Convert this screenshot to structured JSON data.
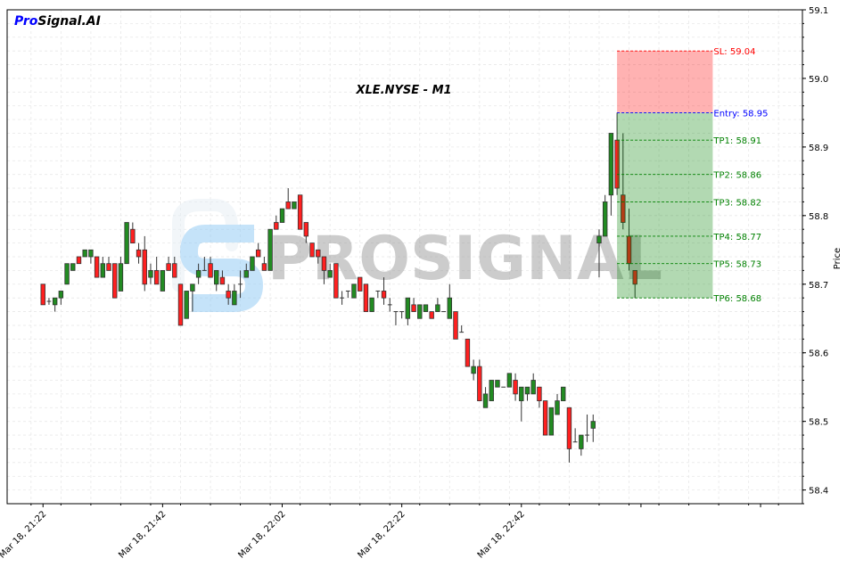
{
  "brand": {
    "part1": "Pro",
    "part2": "Signal.AI",
    "part1_color": "#0000ff",
    "part2_color": "#000000"
  },
  "watermark": {
    "text": "PROSIGNAL",
    "logo_icon": "prosignal-s-logo"
  },
  "chart_data": {
    "type": "candlestick",
    "title": "XLE.NYSE - M1",
    "xlabel": "",
    "ylabel": "Price",
    "date": "Mar 18",
    "xlim": [
      "21:16",
      "23:29"
    ],
    "ylim": [
      58.38,
      59.1
    ],
    "yticks": [
      "58.4",
      "58.5",
      "58.6",
      "58.7",
      "58.8",
      "58.9",
      "59.0",
      "59.1"
    ],
    "xticks": [
      {
        "time": "21:22",
        "label": "Mar 18, 21:22"
      },
      {
        "time": "21:42",
        "label": "Mar 18, 21:42"
      },
      {
        "time": "22:02",
        "label": "Mar 18, 22:02"
      },
      {
        "time": "22:22",
        "label": "Mar 18, 22:22"
      },
      {
        "time": "22:42",
        "label": "Mar 18, 22:42"
      },
      {
        "time": "23:02",
        "label": ""
      },
      {
        "time": "23:22",
        "label": ""
      }
    ],
    "grid": true,
    "colors": {
      "up": "#228b22",
      "down": "#ff2020",
      "edge": "#333333",
      "sl_zone": "#ff0000",
      "tp_zone": "#008000",
      "entry": "#0000ff"
    },
    "candles_fields": [
      "time",
      "open",
      "high",
      "low",
      "close"
    ],
    "candles": [
      [
        "21:22",
        58.7,
        58.7,
        58.67,
        58.67
      ],
      [
        "21:23",
        58.675,
        58.68,
        58.67,
        58.675
      ],
      [
        "21:24",
        58.67,
        58.68,
        58.66,
        58.68
      ],
      [
        "21:25",
        58.68,
        58.69,
        58.67,
        58.69
      ],
      [
        "21:26",
        58.7,
        58.73,
        58.7,
        58.73
      ],
      [
        "21:27",
        58.72,
        58.73,
        58.72,
        58.73
      ],
      [
        "21:28",
        58.74,
        58.74,
        58.73,
        58.73
      ],
      [
        "21:29",
        58.74,
        58.75,
        58.74,
        58.75
      ],
      [
        "21:30",
        58.74,
        58.75,
        58.73,
        58.75
      ],
      [
        "21:31",
        58.74,
        58.74,
        58.71,
        58.71
      ],
      [
        "21:32",
        58.71,
        58.74,
        58.71,
        58.73
      ],
      [
        "21:33",
        58.73,
        58.74,
        58.72,
        58.72
      ],
      [
        "21:34",
        58.73,
        58.73,
        58.68,
        58.68
      ],
      [
        "21:35",
        58.69,
        58.74,
        58.69,
        58.73
      ],
      [
        "21:36",
        58.73,
        58.79,
        58.73,
        58.79
      ],
      [
        "21:37",
        58.78,
        58.79,
        58.76,
        58.76
      ],
      [
        "21:38",
        58.75,
        58.76,
        58.73,
        58.74
      ],
      [
        "21:39",
        58.75,
        58.77,
        58.69,
        58.7
      ],
      [
        "21:40",
        58.71,
        58.73,
        58.7,
        58.72
      ],
      [
        "21:41",
        58.72,
        58.74,
        58.7,
        58.7
      ],
      [
        "21:42",
        58.69,
        58.72,
        58.69,
        58.72
      ],
      [
        "21:43",
        58.73,
        58.74,
        58.72,
        58.72
      ],
      [
        "21:44",
        58.73,
        58.74,
        58.71,
        58.71
      ],
      [
        "21:45",
        58.7,
        58.7,
        58.64,
        58.64
      ],
      [
        "21:46",
        58.65,
        58.69,
        58.65,
        58.69
      ],
      [
        "21:47",
        58.69,
        58.7,
        58.66,
        58.7
      ],
      [
        "21:48",
        58.71,
        58.73,
        58.7,
        58.72
      ],
      [
        "21:49",
        58.72,
        58.74,
        58.72,
        58.72
      ],
      [
        "21:50",
        58.73,
        58.74,
        58.71,
        58.71
      ],
      [
        "21:51",
        58.7,
        58.72,
        58.69,
        58.72
      ],
      [
        "21:52",
        58.71,
        58.72,
        58.7,
        58.7
      ],
      [
        "21:53",
        58.69,
        58.7,
        58.67,
        58.68
      ],
      [
        "21:54",
        58.67,
        58.7,
        58.67,
        58.69
      ],
      [
        "21:55",
        58.7,
        58.72,
        58.68,
        58.7
      ],
      [
        "21:56",
        58.71,
        58.73,
        58.71,
        58.72
      ],
      [
        "21:57",
        58.72,
        58.74,
        58.72,
        58.74
      ],
      [
        "21:58",
        58.75,
        58.76,
        58.74,
        58.74
      ],
      [
        "21:59",
        58.73,
        58.74,
        58.72,
        58.72
      ],
      [
        "22:00",
        58.72,
        58.78,
        58.72,
        58.78
      ],
      [
        "22:01",
        58.79,
        58.8,
        58.78,
        58.78
      ],
      [
        "22:02",
        58.79,
        58.81,
        58.79,
        58.81
      ],
      [
        "22:03",
        58.82,
        58.84,
        58.81,
        58.81
      ],
      [
        "22:04",
        58.81,
        58.82,
        58.81,
        58.82
      ],
      [
        "22:05",
        58.83,
        58.83,
        58.78,
        58.78
      ],
      [
        "22:06",
        58.79,
        58.79,
        58.76,
        58.77
      ],
      [
        "22:07",
        58.76,
        58.76,
        58.74,
        58.74
      ],
      [
        "22:08",
        58.75,
        58.75,
        58.73,
        58.74
      ],
      [
        "22:09",
        58.74,
        58.74,
        58.7,
        58.72
      ],
      [
        "22:10",
        58.71,
        58.73,
        58.71,
        58.72
      ],
      [
        "22:11",
        58.73,
        58.73,
        58.68,
        58.68
      ],
      [
        "22:12",
        58.68,
        58.69,
        58.67,
        58.68
      ],
      [
        "22:13",
        58.69,
        58.69,
        58.68,
        58.69
      ],
      [
        "22:14",
        58.68,
        58.7,
        58.68,
        58.7
      ],
      [
        "22:15",
        58.71,
        58.71,
        58.69,
        58.69
      ],
      [
        "22:16",
        58.7,
        58.7,
        58.66,
        58.66
      ],
      [
        "22:17",
        58.66,
        58.68,
        58.66,
        58.68
      ],
      [
        "22:18",
        58.69,
        58.69,
        58.68,
        58.69
      ],
      [
        "22:19",
        58.69,
        58.71,
        58.67,
        58.68
      ],
      [
        "22:20",
        58.67,
        58.68,
        58.66,
        58.67
      ],
      [
        "22:21",
        58.66,
        58.66,
        58.64,
        58.66
      ],
      [
        "22:22",
        58.66,
        58.66,
        58.65,
        58.66
      ],
      [
        "22:23",
        58.65,
        58.68,
        58.64,
        58.68
      ],
      [
        "22:24",
        58.67,
        58.68,
        58.66,
        58.66
      ],
      [
        "22:25",
        58.65,
        58.67,
        58.65,
        58.67
      ],
      [
        "22:26",
        58.66,
        58.67,
        58.66,
        58.67
      ],
      [
        "22:27",
        58.66,
        58.66,
        58.65,
        58.65
      ],
      [
        "22:28",
        58.66,
        58.68,
        58.66,
        58.67
      ],
      [
        "22:29",
        58.66,
        58.66,
        58.66,
        58.66
      ],
      [
        "22:30",
        58.65,
        58.7,
        58.65,
        58.68
      ],
      [
        "22:31",
        58.66,
        58.66,
        58.62,
        58.62
      ],
      [
        "22:32",
        58.63,
        58.64,
        58.63,
        58.63
      ],
      [
        "22:33",
        58.62,
        58.62,
        58.58,
        58.58
      ],
      [
        "22:34",
        58.57,
        58.59,
        58.56,
        58.58
      ],
      [
        "22:35",
        58.58,
        58.59,
        58.53,
        58.53
      ],
      [
        "22:36",
        58.52,
        58.55,
        58.52,
        58.54
      ],
      [
        "22:37",
        58.53,
        58.56,
        58.53,
        58.56
      ],
      [
        "22:38",
        58.55,
        58.56,
        58.55,
        58.56
      ],
      [
        "22:39",
        58.55,
        58.55,
        58.55,
        58.55
      ],
      [
        "22:40",
        58.55,
        58.57,
        58.55,
        58.57
      ],
      [
        "22:41",
        58.56,
        58.57,
        58.53,
        58.54
      ],
      [
        "22:42",
        58.53,
        58.55,
        58.5,
        58.55
      ],
      [
        "22:43",
        58.54,
        58.55,
        58.53,
        58.55
      ],
      [
        "22:44",
        58.54,
        58.57,
        58.54,
        58.56
      ],
      [
        "22:45",
        58.55,
        58.55,
        58.52,
        58.53
      ],
      [
        "22:46",
        58.53,
        58.53,
        58.48,
        58.48
      ],
      [
        "22:47",
        58.48,
        58.52,
        58.48,
        58.52
      ],
      [
        "22:48",
        58.51,
        58.54,
        58.51,
        58.53
      ],
      [
        "22:49",
        58.53,
        58.55,
        58.53,
        58.55
      ],
      [
        "22:50",
        58.52,
        58.52,
        58.44,
        58.46
      ],
      [
        "22:51",
        58.47,
        58.49,
        58.47,
        58.47
      ],
      [
        "22:52",
        58.46,
        58.48,
        58.45,
        58.48
      ],
      [
        "22:53",
        58.48,
        58.51,
        58.47,
        58.48
      ],
      [
        "22:54",
        58.49,
        58.51,
        58.47,
        58.5
      ],
      [
        "22:55",
        58.76,
        58.78,
        58.71,
        58.77
      ],
      [
        "22:56",
        58.77,
        58.83,
        58.77,
        58.82
      ],
      [
        "22:57",
        58.83,
        58.92,
        58.8,
        58.92
      ],
      [
        "22:58",
        58.91,
        58.95,
        58.83,
        58.84
      ],
      [
        "22:59",
        58.83,
        58.92,
        58.78,
        58.79
      ],
      [
        "23:00",
        58.77,
        58.81,
        58.72,
        58.73
      ],
      [
        "23:01",
        58.72,
        58.72,
        58.68,
        58.7
      ]
    ],
    "trade_zone": {
      "start": "22:58",
      "end": "23:14",
      "sl": {
        "label": "SL: 59.04",
        "value": 59.04,
        "color": "#ff0000"
      },
      "entry": {
        "label": "Entry: 58.95",
        "value": 58.95,
        "color": "#0000ff"
      },
      "tps": [
        {
          "label": "TP1: 58.91",
          "value": 58.91
        },
        {
          "label": "TP2: 58.86",
          "value": 58.86
        },
        {
          "label": "TP3: 58.82",
          "value": 58.82
        },
        {
          "label": "TP4: 58.77",
          "value": 58.77
        },
        {
          "label": "TP5: 58.73",
          "value": 58.73
        },
        {
          "label": "TP6: 58.68",
          "value": 58.68
        }
      ],
      "tp_color": "#008000"
    }
  }
}
